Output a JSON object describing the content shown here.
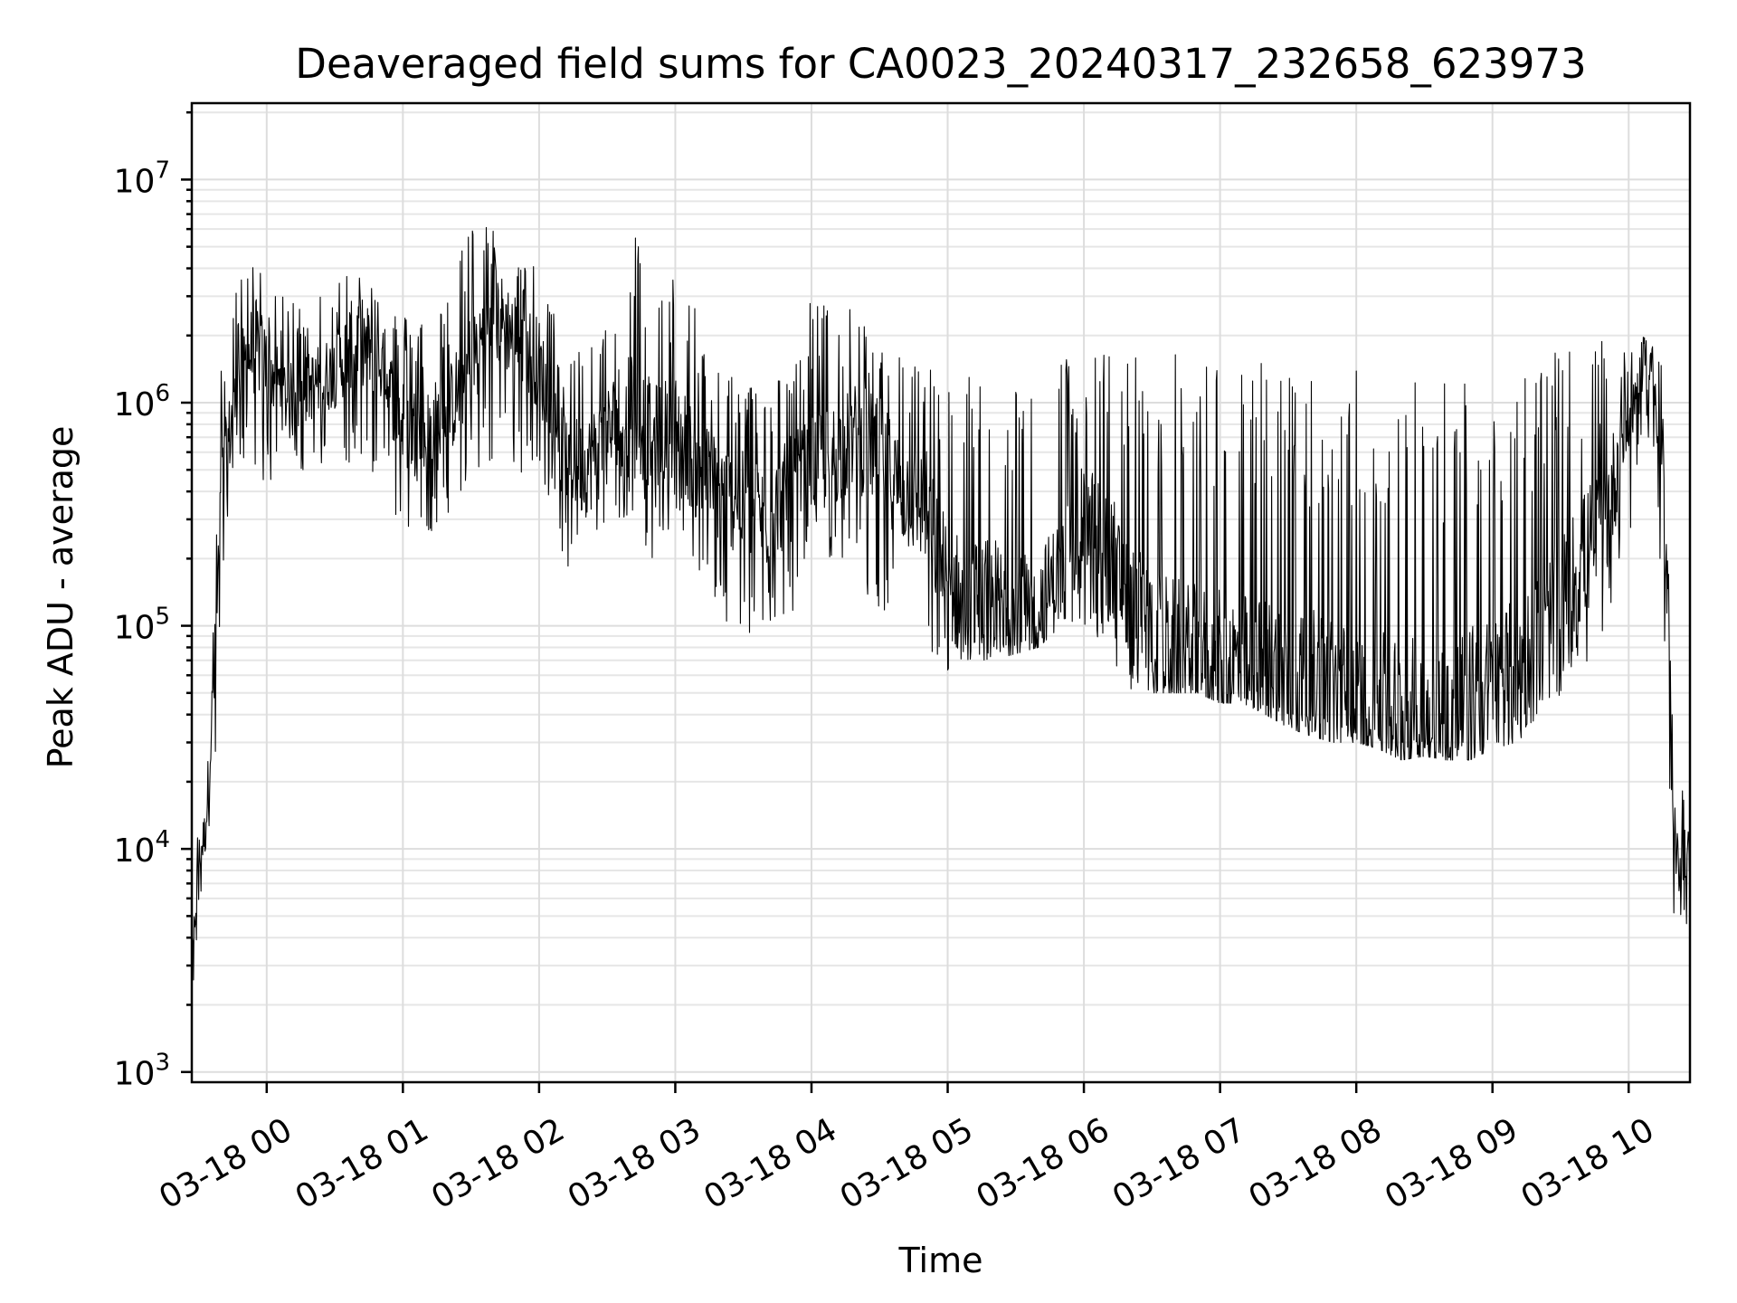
{
  "chart_data": {
    "type": "line",
    "title": "Deaveraged field sums for CA0023_20240317_232658_623973",
    "xlabel": "Time",
    "ylabel": "Peak ADU - average",
    "yscale": "log",
    "ylim": [
      900,
      22000000
    ],
    "xlim": [
      "03-17 23:27",
      "03-18 10:27"
    ],
    "grid": true,
    "legend": "none",
    "line_color": "#000000",
    "x_ticks": [
      "03-18 00",
      "03-18 01",
      "03-18 02",
      "03-18 03",
      "03-18 04",
      "03-18 05",
      "03-18 06",
      "03-18 07",
      "03-18 08",
      "03-18 09",
      "03-18 10"
    ],
    "y_ticks": [
      {
        "value": 1000,
        "base": "10",
        "exp": "3"
      },
      {
        "value": 10000,
        "base": "10",
        "exp": "4"
      },
      {
        "value": 100000,
        "base": "10",
        "exp": "5"
      },
      {
        "value": 1000000,
        "base": "10",
        "exp": "6"
      },
      {
        "value": 10000000,
        "base": "10",
        "exp": "7"
      }
    ],
    "series": [
      {
        "x": [
          "03-17 23:27",
          "03-17 23:30",
          "03-17 23:33",
          "03-17 23:37",
          "03-17 23:40",
          "03-17 23:45",
          "03-17 23:50",
          "03-17 23:55",
          "03-18 00:00",
          "03-18 00:10",
          "03-18 00:20",
          "03-18 00:30",
          "03-18 00:40",
          "03-18 00:50",
          "03-18 01:00",
          "03-18 01:10",
          "03-18 01:20",
          "03-18 01:30",
          "03-18 01:40",
          "03-18 01:50",
          "03-18 02:00",
          "03-18 02:10",
          "03-18 02:20",
          "03-18 02:30",
          "03-18 02:40",
          "03-18 02:50",
          "03-18 03:00",
          "03-18 03:10",
          "03-18 03:20",
          "03-18 03:30",
          "03-18 03:40",
          "03-18 03:50",
          "03-18 04:00",
          "03-18 04:10",
          "03-18 04:20",
          "03-18 04:30",
          "03-18 04:40",
          "03-18 04:50",
          "03-18 05:00",
          "03-18 05:10",
          "03-18 05:20",
          "03-18 05:30",
          "03-18 05:40",
          "03-18 05:50",
          "03-18 06:00",
          "03-18 06:10",
          "03-18 06:20",
          "03-18 06:30",
          "03-18 06:40",
          "03-18 06:50",
          "03-18 07:00",
          "03-18 07:10",
          "03-18 07:20",
          "03-18 07:30",
          "03-18 07:40",
          "03-18 07:50",
          "03-18 08:00",
          "03-18 08:10",
          "03-18 08:20",
          "03-18 08:30",
          "03-18 08:40",
          "03-18 08:50",
          "03-18 09:00",
          "03-18 09:10",
          "03-18 09:20",
          "03-18 09:30",
          "03-18 09:40",
          "03-18 09:50",
          "03-18 10:00",
          "03-18 10:05",
          "03-18 10:10",
          "03-18 10:15",
          "03-18 10:20",
          "03-18 10:25",
          "03-18 10:27"
        ],
        "y": [
          3000,
          9000,
          12000,
          60000,
          400000,
          900000,
          1500000,
          1800000,
          1500000,
          1000000,
          1200000,
          1400000,
          2000000,
          1500000,
          800000,
          700000,
          900000,
          1500000,
          2500000,
          2000000,
          1500000,
          600000,
          500000,
          700000,
          1000000,
          700000,
          800000,
          500000,
          400000,
          350000,
          300000,
          400000,
          500000,
          600000,
          700000,
          600000,
          400000,
          350000,
          150000,
          130000,
          140000,
          110000,
          120000,
          180000,
          300000,
          250000,
          120000,
          90000,
          80000,
          75000,
          70000,
          68000,
          65000,
          60000,
          55000,
          50000,
          45000,
          42000,
          40000,
          40000,
          42000,
          45000,
          50000,
          60000,
          80000,
          120000,
          200000,
          300000,
          900000,
          1200000,
          1500000,
          600000,
          8000,
          10000,
          9000
        ],
        "hi": [
          5000,
          15000,
          20000,
          150000,
          1500000,
          3000000,
          4000000,
          6000000,
          3000000,
          3000000,
          3000000,
          3500000,
          5000000,
          3000000,
          2500000,
          2500000,
          3000000,
          8000000,
          6000000,
          5000000,
          4000000,
          2000000,
          1800000,
          3000000,
          8000000,
          3000000,
          4000000,
          2500000,
          1500000,
          1300000,
          1200000,
          1500000,
          3000000,
          3000000,
          2500000,
          2000000,
          1700000,
          1500000,
          1500000,
          1400000,
          1300000,
          1500000,
          1500000,
          1600000,
          1800000,
          1700000,
          1700000,
          1700000,
          1700000,
          1600000,
          1600000,
          1600000,
          1550000,
          1550000,
          1500000,
          1500000,
          1450000,
          1450000,
          1450000,
          1400000,
          1400000,
          1400000,
          1400000,
          1500000,
          1600000,
          1700000,
          1800000,
          1900000,
          1900000,
          2000000,
          1900000,
          1800000,
          20000,
          18000,
          15000
        ],
        "lo": [
          2000,
          5000,
          6000,
          15000,
          150000,
          400000,
          500000,
          500000,
          400000,
          400000,
          500000,
          500000,
          500000,
          400000,
          250000,
          200000,
          300000,
          500000,
          500000,
          500000,
          400000,
          200000,
          150000,
          200000,
          300000,
          200000,
          300000,
          150000,
          100000,
          90000,
          80000,
          100000,
          200000,
          200000,
          150000,
          120000,
          100000,
          70000,
          60000,
          70000,
          70000,
          75000,
          80000,
          100000,
          100000,
          80000,
          50000,
          50000,
          50000,
          50000,
          45000,
          45000,
          40000,
          35000,
          32000,
          30000,
          30000,
          28000,
          25000,
          26000,
          25000,
          25000,
          28000,
          30000,
          35000,
          45000,
          60000,
          80000,
          200000,
          500000,
          700000,
          100000,
          3500,
          4000,
          4000
        ]
      }
    ]
  }
}
